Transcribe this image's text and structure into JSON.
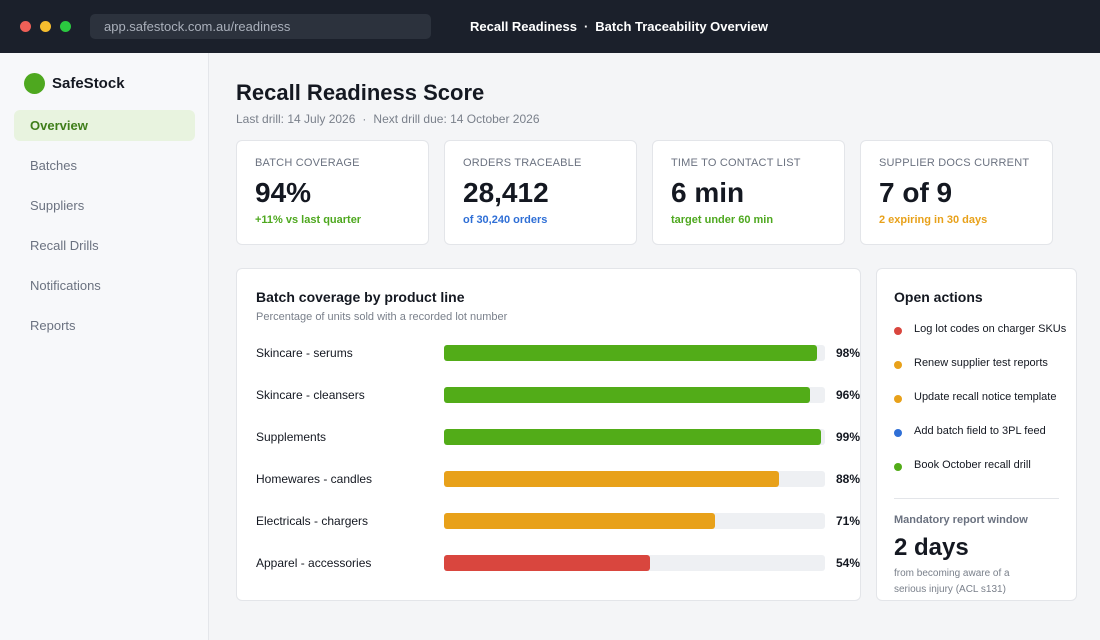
{
  "window": {
    "url": "app.safestock.com.au/readiness",
    "title": "Recall Readiness",
    "title_sep": "·",
    "subtitle": "Batch Traceability Overview"
  },
  "brand": {
    "name": "SafeStock",
    "logo_color": "#4ea81f"
  },
  "sidebar": {
    "items": [
      {
        "label": "Overview",
        "active": true
      },
      {
        "label": "Batches"
      },
      {
        "label": "Suppliers"
      },
      {
        "label": "Recall Drills"
      },
      {
        "label": "Notifications"
      },
      {
        "label": "Reports"
      }
    ]
  },
  "page": {
    "title": "Recall Readiness Score",
    "last_drill": "Last drill: 14 July 2026",
    "sep": "·",
    "next_drill": "Next drill due: 14 October 2026"
  },
  "kpis": [
    {
      "label": "Batch coverage",
      "value": "94%",
      "note": "+11% vs last quarter",
      "note_color": "#4ea81f"
    },
    {
      "label": "Orders traceable",
      "value": "28,412",
      "note": "of 30,240 orders",
      "note_color": "#2f6fd6"
    },
    {
      "label": "Time to contact list",
      "value": "6 min",
      "note": "target under 60 min",
      "note_color": "#4ea81f"
    },
    {
      "label": "Supplier docs current",
      "value": "7 of 9",
      "note": "2 expiring in 30 days",
      "note_color": "#e8a11a"
    }
  ],
  "coverage": {
    "title": "Batch coverage by product line",
    "subtitle": "Percentage of units sold with a recorded lot number",
    "rows": [
      {
        "label": "Skincare - serums",
        "value": 98,
        "pct": "98%",
        "color": "#52ac18"
      },
      {
        "label": "Skincare - cleansers",
        "value": 96,
        "pct": "96%",
        "color": "#52ac18"
      },
      {
        "label": "Supplements",
        "value": 99,
        "pct": "99%",
        "color": "#52ac18"
      },
      {
        "label": "Homewares - candles",
        "value": 88,
        "pct": "88%",
        "color": "#e8a11a"
      },
      {
        "label": "Electricals - chargers",
        "value": 71,
        "pct": "71%",
        "color": "#e8a11a"
      },
      {
        "label": "Apparel - accessories",
        "value": 54,
        "pct": "54%",
        "color": "#d9463e"
      }
    ]
  },
  "actions": {
    "title": "Open actions",
    "items": [
      {
        "label": "Log lot codes on charger SKUs",
        "color": "#d9463e"
      },
      {
        "label": "Renew supplier test reports",
        "color": "#e8a11a"
      },
      {
        "label": "Update recall notice template",
        "color": "#e8a11a"
      },
      {
        "label": "Add batch field to 3PL feed",
        "color": "#2f6fd6"
      },
      {
        "label": "Book October recall drill",
        "color": "#52ac18"
      }
    ],
    "report_window_label": "Mandatory report window",
    "report_window_value": "2 days",
    "report_window_note": "from becoming aware of a serious injury (ACL s131)"
  }
}
